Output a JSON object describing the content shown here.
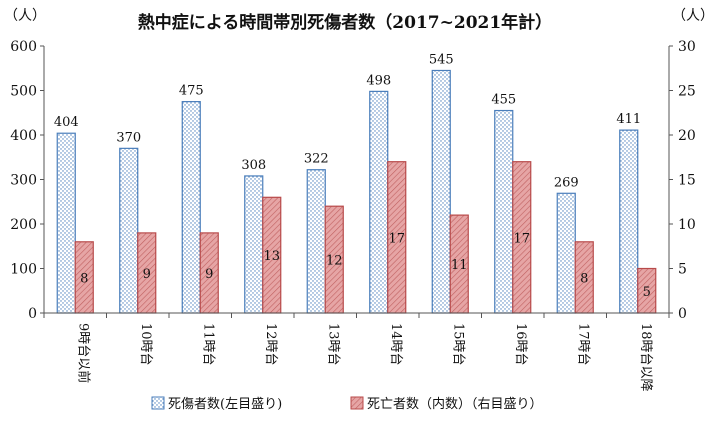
{
  "chart_data": {
    "type": "bar",
    "title": "熱中症による時間帯別死傷者数（2017~2021年計）",
    "y_left_unit": "（人）",
    "y_right_unit": "（人）",
    "ylim_left": [
      0,
      600
    ],
    "ylim_right": [
      0,
      30
    ],
    "yticks_left": [
      0,
      100,
      200,
      300,
      400,
      500,
      600
    ],
    "yticks_right": [
      0,
      5,
      10,
      15,
      20,
      25,
      30
    ],
    "grid": false,
    "legend_position": "bottom",
    "categories": [
      "9時台以前",
      "10時台",
      "11時台",
      "12時台",
      "13時台",
      "14時台",
      "15時台",
      "16時台",
      "17時台",
      "18時台以降"
    ],
    "series": [
      {
        "name": "死傷者数(左目盛り)",
        "axis": "left",
        "color": "#4a7ebb",
        "pattern": "dots",
        "values": [
          404,
          370,
          475,
          308,
          322,
          498,
          545,
          455,
          269,
          411
        ]
      },
      {
        "name": "死亡者数（内数）（右目盛り）",
        "axis": "right",
        "color": "#b84a4a",
        "fill": "#e6a5a5",
        "pattern": "hatch",
        "values": [
          8,
          9,
          9,
          13,
          12,
          17,
          11,
          17,
          8,
          5
        ]
      }
    ]
  }
}
